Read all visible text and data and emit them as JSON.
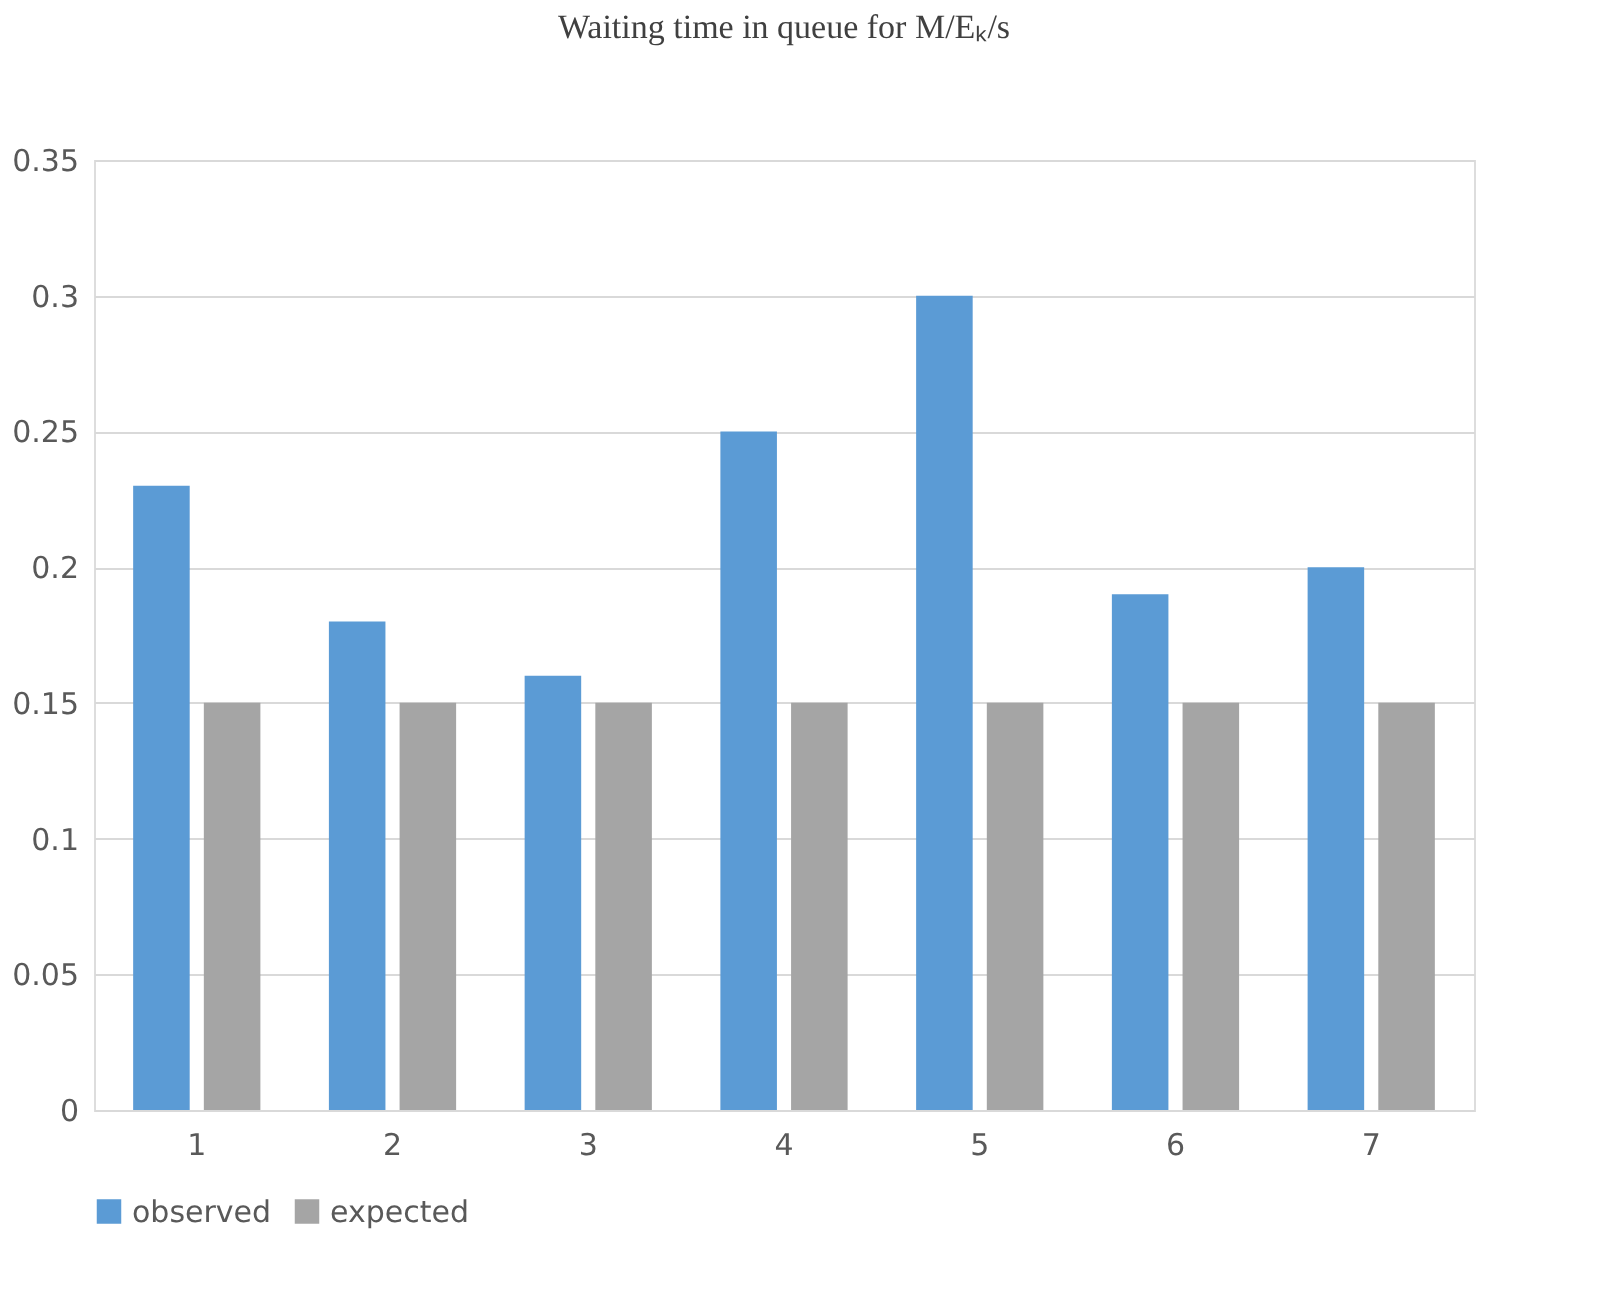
{
  "chart_data": {
    "type": "bar",
    "title": "Waiting time in queue for M/Eₖ/s",
    "categories": [
      "1",
      "2",
      "3",
      "4",
      "5",
      "6",
      "7"
    ],
    "series": [
      {
        "name": "observed",
        "color": "#5b9bd5",
        "values": [
          0.23,
          0.18,
          0.16,
          0.25,
          0.3,
          0.19,
          0.2
        ]
      },
      {
        "name": "expected",
        "color": "#a5a5a5",
        "values": [
          0.15,
          0.15,
          0.15,
          0.15,
          0.15,
          0.15,
          0.15
        ]
      }
    ],
    "ylim": [
      0,
      0.35
    ],
    "yticks": [
      0,
      0.05,
      0.1,
      0.15,
      0.2,
      0.25,
      0.3,
      0.35
    ],
    "grid": "y",
    "legend": "bottom"
  }
}
